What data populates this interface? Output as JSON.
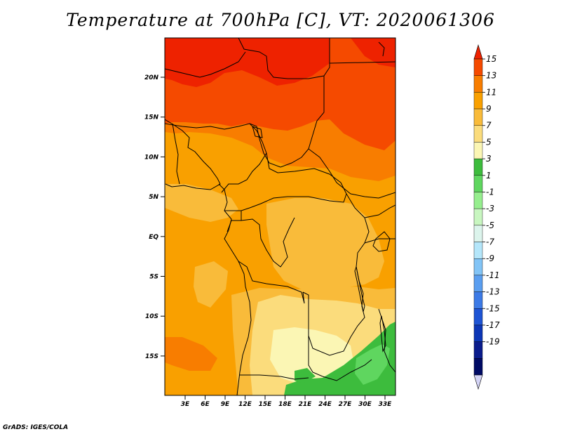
{
  "title": "Temperature at 700hPa [C], VT: 2020061306",
  "footer": "GrADS: IGES/COLA",
  "map": {
    "lat_labels": [
      "20N",
      "15N",
      "10N",
      "5N",
      "EQ",
      "5S",
      "10S",
      "15S"
    ],
    "lon_labels": [
      "3E",
      "6E",
      "9E",
      "12E",
      "15E",
      "18E",
      "21E",
      "24E",
      "27E",
      "30E",
      "33E"
    ]
  },
  "colorbar": {
    "levels": [
      "15",
      "13",
      "11",
      "9",
      "7",
      "5",
      "3",
      "1",
      "-1",
      "-3",
      "-5",
      "-7",
      "-9",
      "-11",
      "-13",
      "-15",
      "-17",
      "-19"
    ],
    "colors": [
      "#ee2200",
      "#f54a00",
      "#f87d00",
      "#f9a000",
      "#f9bb3a",
      "#fbdc7c",
      "#fbf6b4",
      "#3dbc3d",
      "#5fd65f",
      "#96ee8e",
      "#c8f6c0",
      "#dcf4ec",
      "#b4e6fa",
      "#82c4f6",
      "#5a9ef0",
      "#3c7ae6",
      "#1e54d4",
      "#0c36b6",
      "#0a1c8c",
      "#000a64",
      "#d4d4f6"
    ]
  }
}
